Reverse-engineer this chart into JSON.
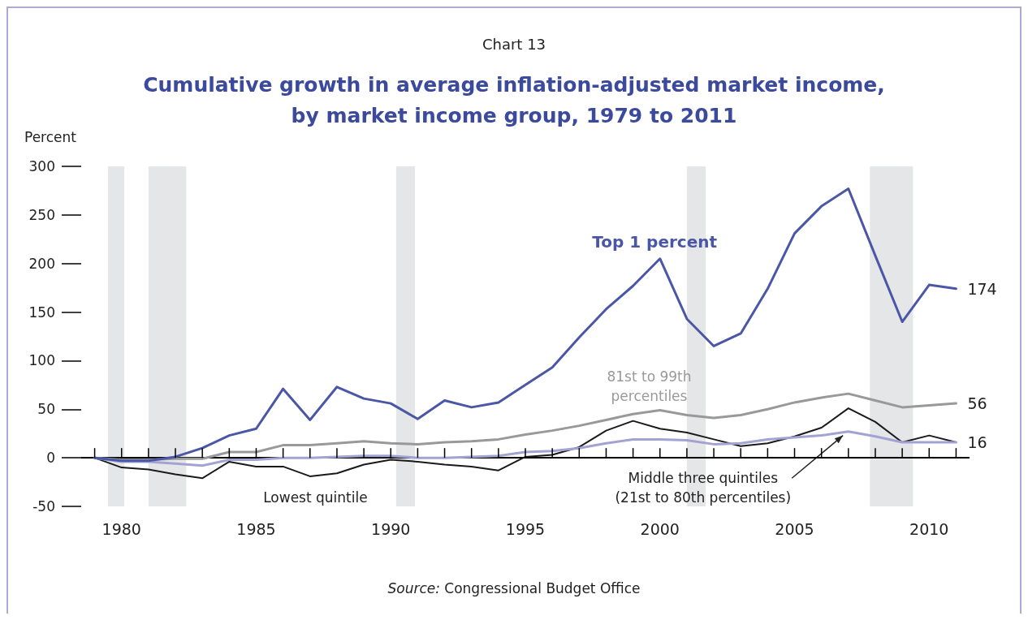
{
  "chart_data": {
    "type": "line",
    "subtitle": "Chart 13",
    "title": "Cumulative growth in average inflation-adjusted market income,\nby market income group, 1979 to 2011",
    "ylabel": "Percent",
    "x": [
      1979,
      1980,
      1981,
      1982,
      1983,
      1984,
      1985,
      1986,
      1987,
      1988,
      1989,
      1990,
      1991,
      1992,
      1993,
      1994,
      1995,
      1996,
      1997,
      1998,
      1999,
      2000,
      2001,
      2002,
      2003,
      2004,
      2005,
      2006,
      2007,
      2008,
      2009,
      2010,
      2011
    ],
    "series": [
      {
        "name": "Top 1 percent",
        "color": "#4a56a6",
        "values": [
          0,
          -3,
          -3,
          1,
          10,
          23,
          30,
          71,
          39,
          73,
          61,
          56,
          40,
          59,
          52,
          57,
          75,
          93,
          124,
          153,
          177,
          205,
          143,
          115,
          128,
          174,
          231,
          259,
          277,
          208,
          140,
          178,
          174
        ],
        "value_labels": [
          null,
          null,
          null,
          null,
          null,
          null,
          null,
          null,
          null,
          null,
          null,
          null,
          null,
          null,
          null,
          null,
          null,
          null,
          null,
          null,
          null,
          null,
          null,
          null,
          null,
          null,
          null,
          null,
          null,
          null,
          null,
          null,
          "174"
        ]
      },
      {
        "name": "81st to 99th\npercentiles",
        "color": "#999999",
        "values": [
          0,
          -2,
          -2,
          -1,
          -1,
          6,
          6,
          13,
          13,
          15,
          17,
          15,
          14,
          16,
          17,
          19,
          24,
          28,
          33,
          39,
          45,
          49,
          44,
          41,
          44,
          50,
          57,
          62,
          66,
          59,
          52,
          54,
          56
        ],
        "value_labels": [
          null,
          null,
          null,
          null,
          null,
          null,
          null,
          null,
          null,
          null,
          null,
          null,
          null,
          null,
          null,
          null,
          null,
          null,
          null,
          null,
          null,
          null,
          null,
          null,
          null,
          null,
          null,
          null,
          null,
          null,
          null,
          null,
          "56"
        ]
      },
      {
        "name": "Middle three quintiles\n(21st to 80th percentiles)",
        "color": "#a3a3d3",
        "values": [
          0,
          -4,
          -4,
          -6,
          -8,
          -2,
          -2,
          0,
          0,
          1,
          2,
          2,
          0,
          0,
          1,
          2,
          6,
          7,
          10,
          15,
          19,
          19,
          18,
          14,
          15,
          19,
          21,
          23,
          27,
          22,
          16,
          16,
          16
        ],
        "value_labels": [
          null,
          null,
          null,
          null,
          null,
          null,
          null,
          null,
          null,
          null,
          null,
          null,
          null,
          null,
          null,
          null,
          null,
          null,
          null,
          null,
          null,
          null,
          null,
          null,
          null,
          null,
          null,
          null,
          null,
          null,
          null,
          null,
          "16"
        ]
      },
      {
        "name": "Lowest quintile",
        "color": "#1a1a1a",
        "values": [
          0,
          -10,
          -12,
          -17,
          -21,
          -4,
          -9,
          -9,
          -19,
          -16,
          -7,
          -2,
          -4,
          -7,
          -9,
          -13,
          1,
          3,
          11,
          28,
          38,
          30,
          26,
          19,
          12,
          15,
          22,
          31,
          51,
          37,
          16,
          23,
          16
        ]
      }
    ],
    "xlim": [
      1978.5,
      2011.5
    ],
    "xticks": [
      {
        "value": 1979,
        "label": null
      },
      1980,
      {
        "value": 1981,
        "label": null
      },
      {
        "value": 1982,
        "label": null
      },
      {
        "value": 1983,
        "label": null
      },
      {
        "value": 1984,
        "label": null
      },
      1985,
      {
        "value": 1986,
        "label": null
      },
      {
        "value": 1987,
        "label": null
      },
      {
        "value": 1988,
        "label": null
      },
      {
        "value": 1989,
        "label": null
      },
      1990,
      {
        "value": 1991,
        "label": null
      },
      {
        "value": 1992,
        "label": null
      },
      {
        "value": 1993,
        "label": null
      },
      {
        "value": 1994,
        "label": null
      },
      1995,
      {
        "value": 1996,
        "label": null
      },
      {
        "value": 1997,
        "label": null
      },
      {
        "value": 1998,
        "label": null
      },
      {
        "value": 1999,
        "label": null
      },
      2000,
      {
        "value": 2001,
        "label": null
      },
      {
        "value": 2002,
        "label": null
      },
      {
        "value": 2003,
        "label": null
      },
      {
        "value": 2004,
        "label": null
      },
      2005,
      {
        "value": 2006,
        "label": null
      },
      {
        "value": 2007,
        "label": null
      },
      {
        "value": 2008,
        "label": null
      },
      {
        "value": 2009,
        "label": null
      },
      2010,
      {
        "value": 2011,
        "label": null
      }
    ],
    "ylim": [
      -50,
      300
    ],
    "yticks": [
      -50,
      0,
      50,
      100,
      150,
      200,
      250,
      300
    ],
    "ref_lines": [
      {
        "axis": "y",
        "value": 0,
        "color": "#000000"
      }
    ],
    "bands": [
      {
        "axis": "x",
        "from": 1979.5,
        "to": 1980.1,
        "color": "#e5e6e8"
      },
      {
        "axis": "x",
        "from": 1981.0,
        "to": 1982.4,
        "color": "#e5e6e8"
      },
      {
        "axis": "x",
        "from": 1990.2,
        "to": 1990.9,
        "color": "#e5e6e8"
      },
      {
        "axis": "x",
        "from": 2001.0,
        "to": 2001.7,
        "color": "#e5e6e8"
      },
      {
        "axis": "x",
        "from": 2007.8,
        "to": 2009.4,
        "color": "#e5e6e8"
      }
    ],
    "annotations": [
      "Source: Congressional Budget Office"
    ],
    "grid": false,
    "legend": false,
    "marker": "none",
    "line_style": "solid"
  }
}
